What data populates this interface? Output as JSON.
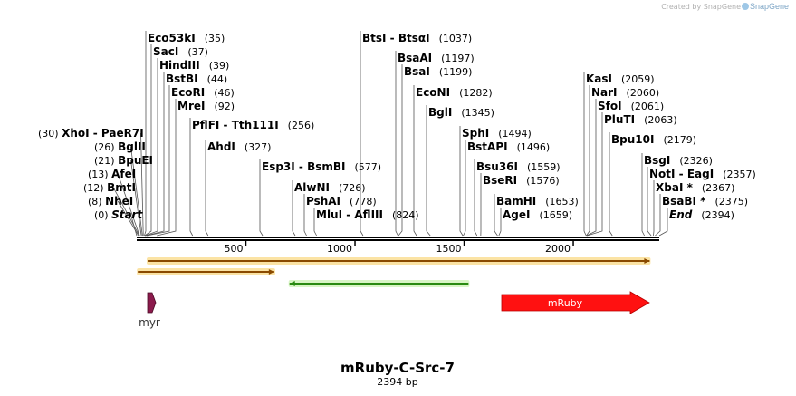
{
  "credit": "Created by SnapGene",
  "title": "mRuby-C-Src-7",
  "subtitle": "2394 bp",
  "seq_length": 2394,
  "ruler_ticks": [
    {
      "pos": 500,
      "label": "500"
    },
    {
      "pos": 1000,
      "label": "1000"
    },
    {
      "pos": 1500,
      "label": "1500"
    },
    {
      "pos": 2000,
      "label": "2000"
    }
  ],
  "enzymes": [
    {
      "names": [
        "Start"
      ],
      "pos": 0,
      "pos_label": "(0)",
      "italic": true,
      "side": "left"
    },
    {
      "names": [
        "NheI"
      ],
      "pos": 8,
      "pos_label": "(8)",
      "side": "left"
    },
    {
      "names": [
        "BmtI"
      ],
      "pos": 12,
      "pos_label": "(12)",
      "side": "left"
    },
    {
      "names": [
        "AfeI"
      ],
      "pos": 13,
      "pos_label": "(13)",
      "side": "left"
    },
    {
      "names": [
        "BpuEI"
      ],
      "pos": 21,
      "pos_label": "(21)",
      "side": "left"
    },
    {
      "names": [
        "BglII"
      ],
      "pos": 26,
      "pos_label": "(26)",
      "side": "left"
    },
    {
      "names": [
        "XhoI",
        "PaeR7I"
      ],
      "pos": 30,
      "pos_label": "(30)",
      "side": "left"
    },
    {
      "names": [
        "Eco53kI"
      ],
      "pos": 35,
      "pos_label": "(35)",
      "side": "right"
    },
    {
      "names": [
        "SacI"
      ],
      "pos": 37,
      "pos_label": "(37)",
      "side": "right"
    },
    {
      "names": [
        "HindIII"
      ],
      "pos": 39,
      "pos_label": "(39)",
      "side": "right"
    },
    {
      "names": [
        "BstBI"
      ],
      "pos": 44,
      "pos_label": "(44)",
      "side": "right"
    },
    {
      "names": [
        "EcoRI"
      ],
      "pos": 46,
      "pos_label": "(46)",
      "side": "right"
    },
    {
      "names": [
        "MreI"
      ],
      "pos": 92,
      "pos_label": "(92)",
      "side": "right"
    },
    {
      "names": [
        "PflFI",
        "Tth111I"
      ],
      "pos": 256,
      "pos_label": "(256)",
      "side": "right"
    },
    {
      "names": [
        "AhdI"
      ],
      "pos": 327,
      "pos_label": "(327)",
      "side": "right"
    },
    {
      "names": [
        "Esp3I",
        "BsmBI"
      ],
      "pos": 577,
      "pos_label": "(577)",
      "side": "right"
    },
    {
      "names": [
        "AlwNI"
      ],
      "pos": 726,
      "pos_label": "(726)",
      "side": "right"
    },
    {
      "names": [
        "PshAI"
      ],
      "pos": 778,
      "pos_label": "(778)",
      "side": "right"
    },
    {
      "names": [
        "MluI",
        "AflIII"
      ],
      "pos": 824,
      "pos_label": "(824)",
      "side": "right"
    },
    {
      "names": [
        "BtsI",
        "BtsαI"
      ],
      "pos": 1037,
      "pos_label": "(1037)",
      "side": "right"
    },
    {
      "names": [
        "BsaAI"
      ],
      "pos": 1197,
      "pos_label": "(1197)",
      "side": "right"
    },
    {
      "names": [
        "BsaI"
      ],
      "pos": 1199,
      "pos_label": "(1199)",
      "side": "right"
    },
    {
      "names": [
        "EcoNI"
      ],
      "pos": 1282,
      "pos_label": "(1282)",
      "side": "right"
    },
    {
      "names": [
        "BglI"
      ],
      "pos": 1345,
      "pos_label": "(1345)",
      "side": "right"
    },
    {
      "names": [
        "SphI"
      ],
      "pos": 1494,
      "pos_label": "(1494)",
      "side": "right"
    },
    {
      "names": [
        "BstAPI"
      ],
      "pos": 1496,
      "pos_label": "(1496)",
      "side": "right"
    },
    {
      "names": [
        "Bsu36I"
      ],
      "pos": 1559,
      "pos_label": "(1559)",
      "side": "right"
    },
    {
      "names": [
        "BseRI"
      ],
      "pos": 1576,
      "pos_label": "(1576)",
      "side": "right"
    },
    {
      "names": [
        "BamHI"
      ],
      "pos": 1653,
      "pos_label": "(1653)",
      "side": "right"
    },
    {
      "names": [
        "AgeI"
      ],
      "pos": 1659,
      "pos_label": "(1659)",
      "side": "right"
    },
    {
      "names": [
        "KasI"
      ],
      "pos": 2059,
      "pos_label": "(2059)",
      "side": "right"
    },
    {
      "names": [
        "NarI"
      ],
      "pos": 2060,
      "pos_label": "(2060)",
      "side": "right"
    },
    {
      "names": [
        "SfoI"
      ],
      "pos": 2061,
      "pos_label": "(2061)",
      "side": "right"
    },
    {
      "names": [
        "PluTI"
      ],
      "pos": 2063,
      "pos_label": "(2063)",
      "side": "right"
    },
    {
      "names": [
        "Bpu10I"
      ],
      "pos": 2179,
      "pos_label": "(2179)",
      "side": "right"
    },
    {
      "names": [
        "BsgI"
      ],
      "pos": 2326,
      "pos_label": "(2326)",
      "side": "right"
    },
    {
      "names": [
        "NotI",
        "EagI"
      ],
      "pos": 2357,
      "pos_label": "(2357)",
      "side": "right"
    },
    {
      "names": [
        "XbaI *"
      ],
      "pos": 2367,
      "pos_label": "(2367)",
      "side": "right"
    },
    {
      "names": [
        "BsaBI *"
      ],
      "pos": 2375,
      "pos_label": "(2375)",
      "side": "right"
    },
    {
      "names": [
        "End"
      ],
      "pos": 2394,
      "pos_label": "(2394)",
      "italic": true,
      "side": "right"
    }
  ],
  "features": [
    {
      "name": "",
      "start": 50,
      "end": 2350,
      "style": "orange-arrow",
      "direction": "forward",
      "color": "#f6a81c"
    },
    {
      "name": "",
      "start": 5,
      "end": 630,
      "style": "orange-arrow",
      "direction": "forward",
      "color": "#f6a81c"
    },
    {
      "name": "",
      "start": 700,
      "end": 1520,
      "style": "green-arrow",
      "direction": "reverse",
      "color": "#34c11a"
    },
    {
      "name": "myr",
      "start": 50,
      "end": 92,
      "style": "block-arrow",
      "direction": "forward",
      "color": "#8b1a4c",
      "label_below": true
    },
    {
      "name": "mRuby",
      "start": 1670,
      "end": 2350,
      "style": "block-arrow",
      "direction": "forward",
      "color": "#ff1111",
      "label_below": false
    }
  ],
  "colors": {
    "backbone": "#000000",
    "lines": "#555555"
  }
}
